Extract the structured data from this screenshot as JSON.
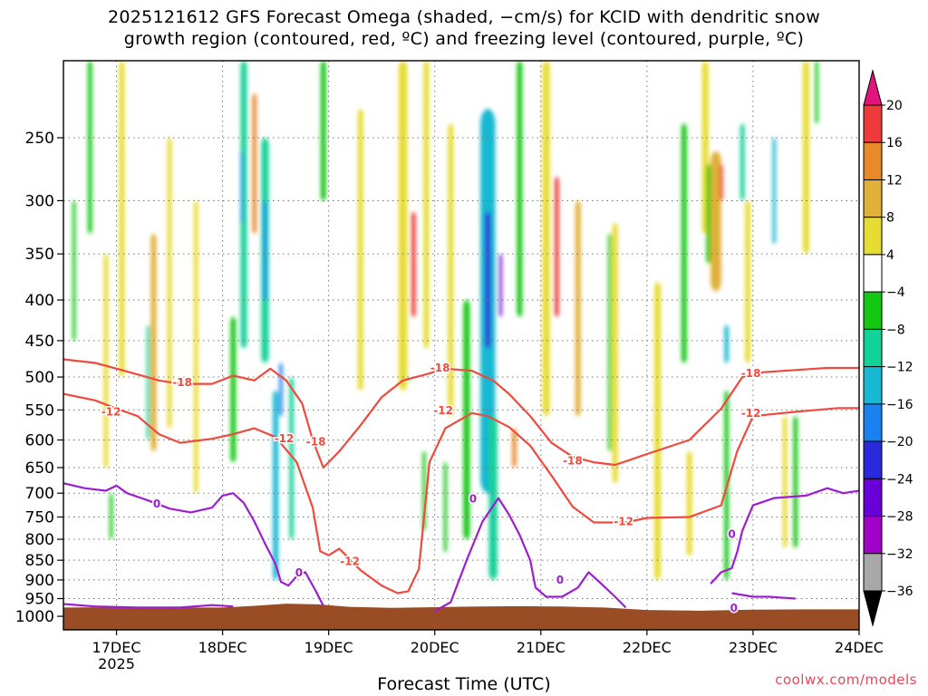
{
  "title": {
    "line1": "2025121612 GFS Forecast Omega (shaded, −cm/s) for KCID with dendritic snow",
    "line2": "growth region (contoured, red, ºC) and freezing level (contoured, purple, ºC)"
  },
  "watermark": "coolwx.com/models",
  "colors": {
    "ground": "#9a4d25",
    "dgz_contour": "#f04a3e",
    "freezing_contour": "#9c1ed0",
    "grid": "#777777"
  },
  "chart_data": {
    "type": "heatmap",
    "xlabel": "Forecast Time (UTC)",
    "ylabel": "",
    "x_range_days": [
      16.5,
      24.0
    ],
    "x_ticks": [
      {
        "value": 17,
        "label": "17DEC",
        "sublabel": "2025"
      },
      {
        "value": 18,
        "label": "18DEC"
      },
      {
        "value": 19,
        "label": "19DEC"
      },
      {
        "value": 20,
        "label": "20DEC"
      },
      {
        "value": 21,
        "label": "21DEC"
      },
      {
        "value": 22,
        "label": "22DEC"
      },
      {
        "value": 23,
        "label": "23DEC"
      },
      {
        "value": 24,
        "label": "24DEC"
      }
    ],
    "y_axis": {
      "type": "log-pressure",
      "unit": "hPa",
      "range": [
        200,
        1040
      ],
      "inverted": true
    },
    "y_ticks": [
      250,
      300,
      350,
      400,
      450,
      500,
      550,
      600,
      650,
      700,
      750,
      800,
      850,
      900,
      950,
      1000
    ],
    "colorbar": {
      "bins": [
        {
          "from": null,
          "to": -36,
          "color": "#000000"
        },
        {
          "from": -36,
          "to": -32,
          "color": "#a8a8a8"
        },
        {
          "from": -32,
          "to": -28,
          "color": "#a000c8"
        },
        {
          "from": -28,
          "to": -24,
          "color": "#6a00d8"
        },
        {
          "from": -24,
          "to": -20,
          "color": "#2a2adc"
        },
        {
          "from": -20,
          "to": -16,
          "color": "#1a82f0"
        },
        {
          "from": -16,
          "to": -12,
          "color": "#18b8d2"
        },
        {
          "from": -12,
          "to": -8,
          "color": "#12d29a"
        },
        {
          "from": -8,
          "to": -4,
          "color": "#12c812"
        },
        {
          "from": -4,
          "to": 4,
          "color": "#ffffff"
        },
        {
          "from": 4,
          "to": 8,
          "color": "#e6dc32"
        },
        {
          "from": 8,
          "to": 12,
          "color": "#e0b038"
        },
        {
          "from": 12,
          "to": 16,
          "color": "#e88a2a"
        },
        {
          "from": 16,
          "to": 20,
          "color": "#ee3a3a"
        },
        {
          "from": 20,
          "to": null,
          "color": "#e0147a"
        }
      ],
      "tick_labels": [
        "20",
        "16",
        "12",
        "8",
        "4",
        "−4",
        "−8",
        "−12",
        "−16",
        "−20",
        "−24",
        "−28",
        "−32",
        "−36"
      ],
      "tick_values": [
        20,
        16,
        12,
        8,
        4,
        -4,
        -8,
        -12,
        -16,
        -20,
        -24,
        -28,
        -32,
        -36
      ]
    },
    "ground_surface": {
      "times": [
        16.5,
        17.0,
        17.5,
        18.0,
        18.3,
        18.6,
        18.9,
        19.2,
        19.6,
        20.0,
        20.4,
        20.8,
        21.2,
        21.6,
        22.0,
        22.5,
        23.0,
        23.5,
        24.0
      ],
      "pressure": [
        975,
        974,
        975,
        975,
        970,
        964,
        966,
        973,
        976,
        974,
        972,
        971,
        972,
        975,
        982,
        984,
        981,
        980,
        980
      ]
    },
    "contours": [
      {
        "name": "-18C",
        "color": "#f04a3e",
        "label": "-18",
        "times": [
          16.5,
          16.8,
          17.1,
          17.4,
          17.6,
          17.9,
          18.1,
          18.3,
          18.45,
          18.6,
          18.75,
          18.85,
          18.95,
          19.1,
          19.3,
          19.5,
          19.7,
          19.9,
          20.1,
          20.35,
          20.55,
          20.7,
          20.9,
          21.1,
          21.3,
          21.5,
          21.7,
          21.85,
          22.0,
          22.4,
          22.7,
          22.9,
          23.1,
          23.4,
          23.7,
          24.0
        ],
        "pressure": [
          475,
          480,
          492,
          505,
          510,
          510,
          498,
          505,
          488,
          505,
          540,
          600,
          650,
          620,
          575,
          530,
          505,
          497,
          488,
          491,
          505,
          525,
          560,
          605,
          630,
          640,
          645,
          635,
          625,
          600,
          548,
          500,
          493,
          490,
          487,
          487
        ]
      },
      {
        "name": "-12C",
        "color": "#f04a3e",
        "label": "-12",
        "times": [
          16.5,
          16.8,
          17.0,
          17.2,
          17.4,
          17.6,
          17.9,
          18.1,
          18.3,
          18.5,
          18.7,
          18.85,
          18.92,
          19.0,
          19.1,
          19.2,
          19.3,
          19.5,
          19.65,
          19.75,
          19.85,
          19.95,
          20.1,
          20.35,
          20.5,
          20.7,
          20.9,
          21.1,
          21.3,
          21.5,
          21.8,
          22.0,
          22.4,
          22.7,
          22.85,
          23.0,
          23.4,
          23.8,
          24.0
        ],
        "pressure": [
          525,
          535,
          548,
          560,
          590,
          605,
          598,
          590,
          580,
          595,
          640,
          730,
          828,
          838,
          822,
          848,
          875,
          915,
          935,
          930,
          872,
          640,
          580,
          555,
          560,
          578,
          610,
          665,
          728,
          762,
          762,
          752,
          750,
          725,
          620,
          560,
          553,
          547,
          547
        ]
      },
      {
        "name": "0C-a",
        "color": "#9c1ed0",
        "label": "0",
        "times": [
          16.5,
          16.7,
          16.9,
          17.0,
          17.1,
          17.3,
          17.5,
          17.7,
          17.9,
          18.0,
          18.1,
          18.2,
          18.3,
          18.4,
          18.5,
          18.55,
          18.62,
          18.7,
          18.78,
          18.88,
          18.95
        ],
        "pressure": [
          680,
          690,
          695,
          685,
          700,
          715,
          732,
          740,
          730,
          705,
          700,
          720,
          760,
          810,
          860,
          905,
          915,
          890,
          880,
          930,
          970
        ]
      },
      {
        "name": "0C-b",
        "color": "#9c1ed0",
        "label": "0",
        "times": [
          20.0,
          20.15,
          20.3,
          20.45,
          20.6,
          20.7,
          20.8,
          20.9,
          20.95,
          21.05,
          21.2,
          21.35,
          21.45,
          21.55,
          21.7,
          21.8
        ],
        "pressure": [
          985,
          960,
          850,
          760,
          710,
          745,
          790,
          850,
          920,
          945,
          945,
          920,
          880,
          905,
          945,
          975
        ]
      },
      {
        "name": "0C-c",
        "color": "#9c1ed0",
        "label": "0",
        "times": [
          22.6,
          22.7,
          22.8,
          22.85,
          22.9,
          23.0,
          23.2,
          23.5,
          23.7,
          23.85,
          24.0
        ],
        "pressure": [
          910,
          880,
          870,
          830,
          780,
          725,
          710,
          705,
          690,
          700,
          695
        ]
      },
      {
        "name": "0C-d",
        "color": "#9c1ed0",
        "label": "0",
        "times": [
          22.8,
          22.9,
          23.0,
          23.15,
          23.3,
          23.4
        ],
        "pressure": [
          935,
          940,
          945,
          945,
          948,
          950
        ]
      },
      {
        "name": "0C-e",
        "color": "#9c1ed0",
        "label": "0",
        "times": [
          16.5,
          16.8,
          17.2,
          17.6,
          17.9,
          18.1
        ],
        "pressure": [
          965,
          972,
          975,
          975,
          968,
          972
        ]
      }
    ],
    "contour_labels": [
      {
        "text": "-12",
        "color": "#f04a3e",
        "time": 16.95,
        "pressure": 553
      },
      {
        "text": "-18",
        "color": "#f04a3e",
        "time": 17.62,
        "pressure": 508
      },
      {
        "text": "-12",
        "color": "#f04a3e",
        "time": 18.58,
        "pressure": 598
      },
      {
        "text": "-18",
        "color": "#f04a3e",
        "time": 18.88,
        "pressure": 603
      },
      {
        "text": "-12",
        "color": "#f04a3e",
        "time": 19.2,
        "pressure": 853
      },
      {
        "text": "-18",
        "color": "#f04a3e",
        "time": 20.05,
        "pressure": 487
      },
      {
        "text": "-12",
        "color": "#f04a3e",
        "time": 20.08,
        "pressure": 551
      },
      {
        "text": "-18",
        "color": "#f04a3e",
        "time": 21.3,
        "pressure": 637
      },
      {
        "text": "-12",
        "color": "#f04a3e",
        "time": 21.78,
        "pressure": 760
      },
      {
        "text": "-18",
        "color": "#f04a3e",
        "time": 22.98,
        "pressure": 495
      },
      {
        "text": "-12",
        "color": "#f04a3e",
        "time": 22.98,
        "pressure": 555
      },
      {
        "text": "0",
        "color": "#9c1ed0",
        "time": 17.38,
        "pressure": 722
      },
      {
        "text": "0",
        "color": "#9c1ed0",
        "time": 18.72,
        "pressure": 882
      },
      {
        "text": "0",
        "color": "#9c1ed0",
        "time": 20.36,
        "pressure": 712
      },
      {
        "text": "0",
        "color": "#9c1ed0",
        "time": 21.18,
        "pressure": 900
      },
      {
        "text": "0",
        "color": "#9c1ed0",
        "time": 22.8,
        "pressure": 788
      },
      {
        "text": "0",
        "color": "#9c1ed0",
        "time": 22.82,
        "pressure": 977
      }
    ],
    "omega_features": [
      {
        "time": 16.9,
        "p_top": 350,
        "p_bot": 650,
        "value": 5,
        "width": 0.04
      },
      {
        "time": 17.05,
        "p_top": 200,
        "p_bot": 500,
        "value": 6,
        "width": 0.05
      },
      {
        "time": 17.35,
        "p_top": 330,
        "p_bot": 620,
        "value": 8,
        "width": 0.05
      },
      {
        "time": 17.5,
        "p_top": 250,
        "p_bot": 580,
        "value": 6,
        "width": 0.04
      },
      {
        "time": 17.75,
        "p_top": 300,
        "p_bot": 700,
        "value": 5,
        "width": 0.04
      },
      {
        "time": 18.3,
        "p_top": 220,
        "p_bot": 330,
        "value": 14,
        "width": 0.04
      },
      {
        "time": 19.3,
        "p_top": 230,
        "p_bot": 520,
        "value": 6,
        "width": 0.05
      },
      {
        "time": 19.7,
        "p_top": 200,
        "p_bot": 520,
        "value": 6,
        "width": 0.08
      },
      {
        "time": 19.8,
        "p_top": 310,
        "p_bot": 420,
        "value": 17,
        "width": 0.04
      },
      {
        "time": 19.92,
        "p_top": 200,
        "p_bot": 460,
        "value": 5,
        "width": 0.05
      },
      {
        "time": 20.15,
        "p_top": 240,
        "p_bot": 560,
        "value": 5,
        "width": 0.05
      },
      {
        "time": 20.75,
        "p_top": 580,
        "p_bot": 650,
        "value": 12,
        "width": 0.04
      },
      {
        "time": 21.15,
        "p_top": 280,
        "p_bot": 420,
        "value": 17,
        "width": 0.04
      },
      {
        "time": 21.05,
        "p_top": 200,
        "p_bot": 560,
        "value": 6,
        "width": 0.07
      },
      {
        "time": 21.35,
        "p_top": 300,
        "p_bot": 560,
        "value": 8,
        "width": 0.05
      },
      {
        "time": 21.7,
        "p_top": 320,
        "p_bot": 680,
        "value": 5,
        "width": 0.05
      },
      {
        "time": 22.1,
        "p_top": 380,
        "p_bot": 900,
        "value": 6,
        "width": 0.06
      },
      {
        "time": 22.4,
        "p_top": 620,
        "p_bot": 840,
        "value": 5,
        "width": 0.05
      },
      {
        "time": 22.55,
        "p_top": 200,
        "p_bot": 330,
        "value": 5,
        "width": 0.06
      },
      {
        "time": 22.65,
        "p_top": 260,
        "p_bot": 390,
        "value": 9,
        "width": 0.1
      },
      {
        "time": 22.7,
        "p_top": 270,
        "p_bot": 300,
        "value": 17,
        "width": 0.03
      },
      {
        "time": 22.95,
        "p_top": 300,
        "p_bot": 480,
        "value": 5,
        "width": 0.05
      },
      {
        "time": 23.3,
        "p_top": 560,
        "p_bot": 820,
        "value": 5,
        "width": 0.04
      },
      {
        "time": 23.5,
        "p_top": 200,
        "p_bot": 350,
        "value": 5,
        "width": 0.06
      },
      {
        "time": 16.6,
        "p_top": 300,
        "p_bot": 450,
        "value": -8,
        "width": 0.03
      },
      {
        "time": 16.75,
        "p_top": 200,
        "p_bot": 330,
        "value": -6,
        "width": 0.04
      },
      {
        "time": 17.3,
        "p_top": 430,
        "p_bot": 600,
        "value": -10,
        "width": 0.03
      },
      {
        "time": 16.95,
        "p_top": 700,
        "p_bot": 800,
        "value": -6,
        "width": 0.03
      },
      {
        "time": 18.1,
        "p_top": 420,
        "p_bot": 640,
        "value": -8,
        "width": 0.05
      },
      {
        "time": 18.2,
        "p_top": 200,
        "p_bot": 460,
        "value": -10,
        "width": 0.06
      },
      {
        "time": 18.18,
        "p_top": 260,
        "p_bot": 320,
        "value": -18,
        "width": 0.02
      },
      {
        "time": 18.4,
        "p_top": 250,
        "p_bot": 480,
        "value": -12,
        "width": 0.07
      },
      {
        "time": 18.4,
        "p_top": 300,
        "p_bot": 400,
        "value": -18,
        "width": 0.03
      },
      {
        "time": 18.5,
        "p_top": 520,
        "p_bot": 900,
        "value": -14,
        "width": 0.05
      },
      {
        "time": 18.55,
        "p_top": 480,
        "p_bot": 560,
        "value": -20,
        "width": 0.03
      },
      {
        "time": 18.65,
        "p_top": 500,
        "p_bot": 800,
        "value": -9,
        "width": 0.04
      },
      {
        "time": 18.95,
        "p_top": 200,
        "p_bot": 300,
        "value": -6,
        "width": 0.05
      },
      {
        "time": 19.9,
        "p_top": 620,
        "p_bot": 780,
        "value": -6,
        "width": 0.03
      },
      {
        "time": 20.5,
        "p_top": 230,
        "p_bot": 700,
        "value": -14,
        "width": 0.14
      },
      {
        "time": 20.5,
        "p_top": 310,
        "p_bot": 460,
        "value": -22,
        "width": 0.05
      },
      {
        "time": 20.62,
        "p_top": 350,
        "p_bot": 420,
        "value": -25,
        "width": 0.025
      },
      {
        "time": 20.3,
        "p_top": 400,
        "p_bot": 800,
        "value": -8,
        "width": 0.06
      },
      {
        "time": 20.55,
        "p_top": 560,
        "p_bot": 900,
        "value": -9,
        "width": 0.08
      },
      {
        "time": 20.1,
        "p_top": 640,
        "p_bot": 830,
        "value": -6,
        "width": 0.03
      },
      {
        "time": 20.8,
        "p_top": 200,
        "p_bot": 420,
        "value": -7,
        "width": 0.05
      },
      {
        "time": 21.65,
        "p_top": 330,
        "p_bot": 620,
        "value": -6,
        "width": 0.03
      },
      {
        "time": 22.35,
        "p_top": 240,
        "p_bot": 480,
        "value": -7,
        "width": 0.05
      },
      {
        "time": 22.58,
        "p_top": 270,
        "p_bot": 360,
        "value": -8,
        "width": 0.04
      },
      {
        "time": 22.9,
        "p_top": 240,
        "p_bot": 300,
        "value": -12,
        "width": 0.04
      },
      {
        "time": 23.2,
        "p_top": 250,
        "p_bot": 340,
        "value": -14,
        "width": 0.03
      },
      {
        "time": 22.75,
        "p_top": 430,
        "p_bot": 480,
        "value": -13,
        "width": 0.04
      },
      {
        "time": 22.75,
        "p_top": 520,
        "p_bot": 900,
        "value": -8,
        "width": 0.04
      },
      {
        "time": 23.4,
        "p_top": 560,
        "p_bot": 820,
        "value": -7,
        "width": 0.04
      },
      {
        "time": 23.6,
        "p_top": 200,
        "p_bot": 240,
        "value": -6,
        "width": 0.03
      }
    ]
  }
}
